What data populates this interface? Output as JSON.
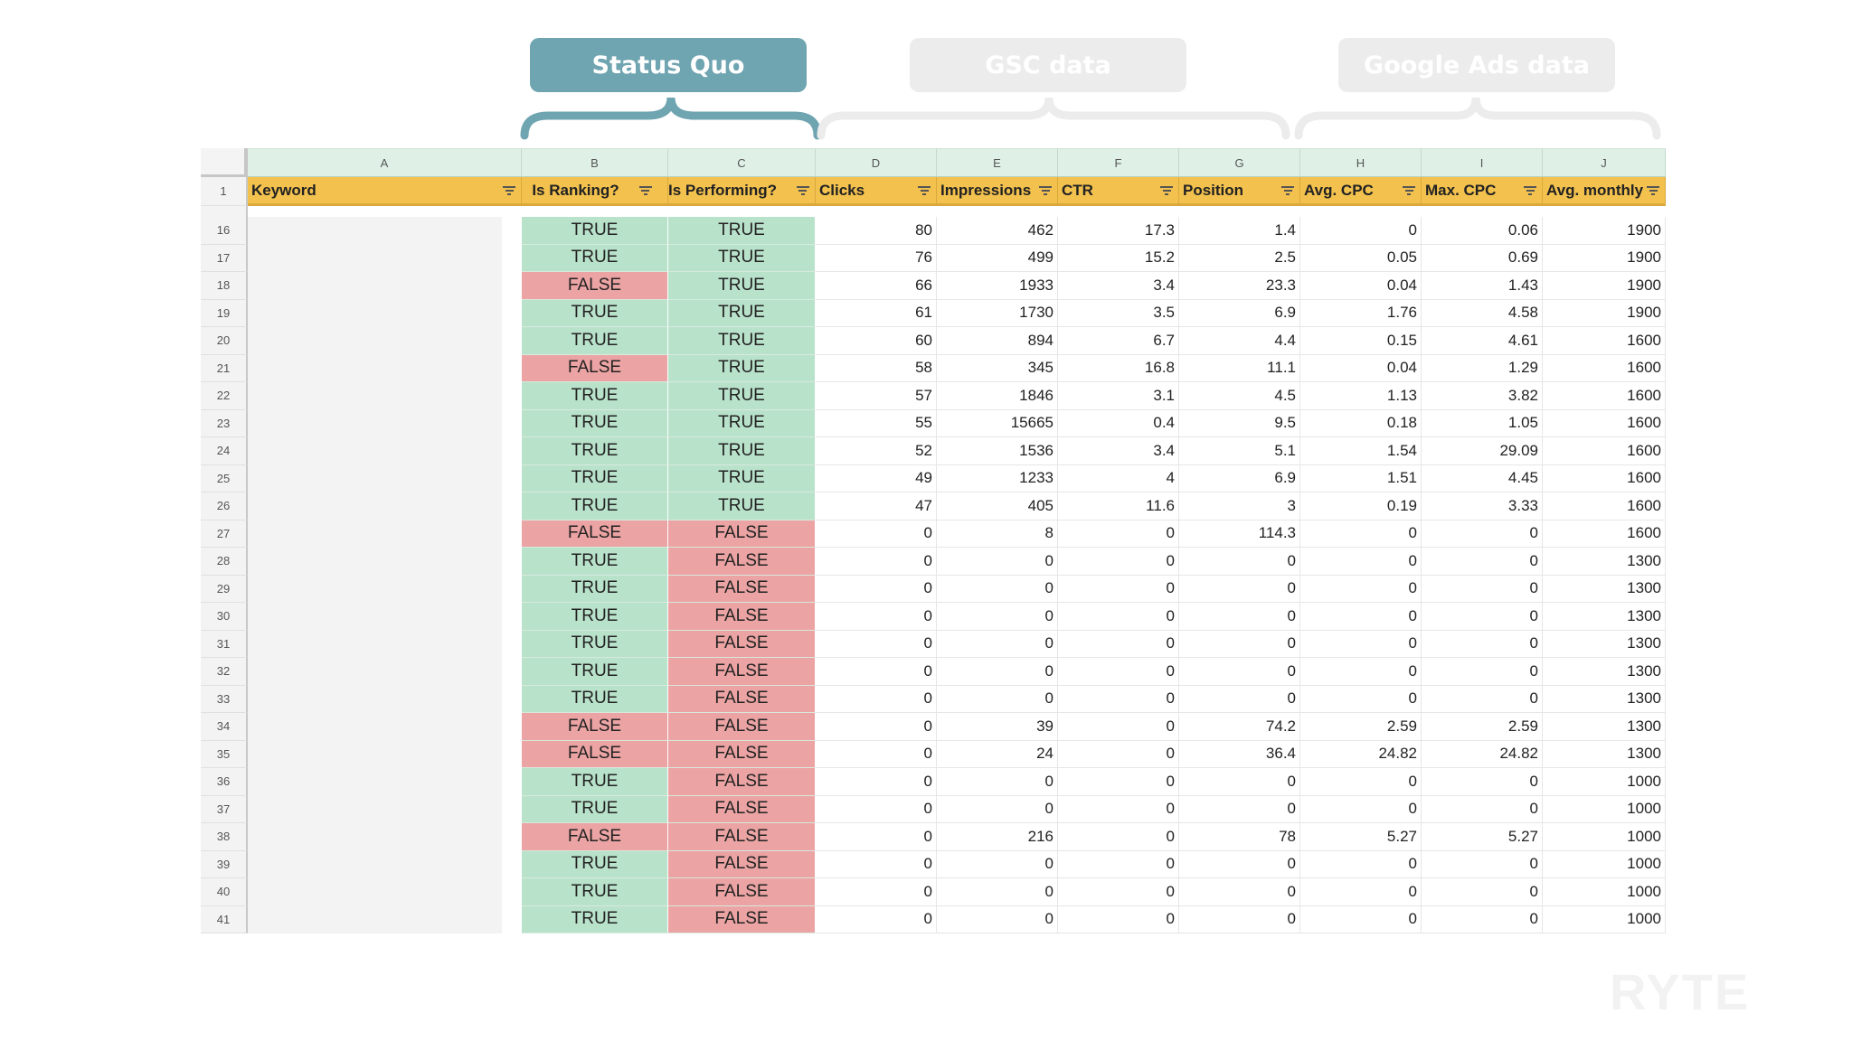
{
  "groups": [
    {
      "label": "Status Quo",
      "active": true
    },
    {
      "label": "GSC data",
      "active": false
    },
    {
      "label": "Google Ads data",
      "active": false
    }
  ],
  "colors": {
    "accent": "#6fa4b1",
    "header": "#f2c14e",
    "true_fill": "#b9e2cb",
    "false_fill": "#eba3a3"
  },
  "column_letters": [
    "A",
    "B",
    "C",
    "D",
    "E",
    "F",
    "G",
    "H",
    "I",
    "J"
  ],
  "header_row_number": "1",
  "headers": [
    "Keyword",
    "Is Ranking?",
    "Is Performing?",
    "Clicks",
    "Impressions",
    "CTR",
    "Position",
    "Avg. CPC",
    "Max. CPC",
    "Avg. monthly"
  ],
  "rows": [
    {
      "n": "16",
      "b": "TRUE",
      "c": "TRUE",
      "v": [
        "80",
        "462",
        "17.3",
        "1.4",
        "0",
        "0.06",
        "1900"
      ]
    },
    {
      "n": "17",
      "b": "TRUE",
      "c": "TRUE",
      "v": [
        "76",
        "499",
        "15.2",
        "2.5",
        "0.05",
        "0.69",
        "1900"
      ]
    },
    {
      "n": "18",
      "b": "FALSE",
      "c": "TRUE",
      "v": [
        "66",
        "1933",
        "3.4",
        "23.3",
        "0.04",
        "1.43",
        "1900"
      ]
    },
    {
      "n": "19",
      "b": "TRUE",
      "c": "TRUE",
      "v": [
        "61",
        "1730",
        "3.5",
        "6.9",
        "1.76",
        "4.58",
        "1900"
      ]
    },
    {
      "n": "20",
      "b": "TRUE",
      "c": "TRUE",
      "v": [
        "60",
        "894",
        "6.7",
        "4.4",
        "0.15",
        "4.61",
        "1600"
      ]
    },
    {
      "n": "21",
      "b": "FALSE",
      "c": "TRUE",
      "v": [
        "58",
        "345",
        "16.8",
        "11.1",
        "0.04",
        "1.29",
        "1600"
      ]
    },
    {
      "n": "22",
      "b": "TRUE",
      "c": "TRUE",
      "v": [
        "57",
        "1846",
        "3.1",
        "4.5",
        "1.13",
        "3.82",
        "1600"
      ]
    },
    {
      "n": "23",
      "b": "TRUE",
      "c": "TRUE",
      "v": [
        "55",
        "15665",
        "0.4",
        "9.5",
        "0.18",
        "1.05",
        "1600"
      ]
    },
    {
      "n": "24",
      "b": "TRUE",
      "c": "TRUE",
      "v": [
        "52",
        "1536",
        "3.4",
        "5.1",
        "1.54",
        "29.09",
        "1600"
      ]
    },
    {
      "n": "25",
      "b": "TRUE",
      "c": "TRUE",
      "v": [
        "49",
        "1233",
        "4",
        "6.9",
        "1.51",
        "4.45",
        "1600"
      ]
    },
    {
      "n": "26",
      "b": "TRUE",
      "c": "TRUE",
      "v": [
        "47",
        "405",
        "11.6",
        "3",
        "0.19",
        "3.33",
        "1600"
      ]
    },
    {
      "n": "27",
      "b": "FALSE",
      "c": "FALSE",
      "v": [
        "0",
        "8",
        "0",
        "114.3",
        "0",
        "0",
        "1600"
      ]
    },
    {
      "n": "28",
      "b": "TRUE",
      "c": "FALSE",
      "v": [
        "0",
        "0",
        "0",
        "0",
        "0",
        "0",
        "1300"
      ]
    },
    {
      "n": "29",
      "b": "TRUE",
      "c": "FALSE",
      "v": [
        "0",
        "0",
        "0",
        "0",
        "0",
        "0",
        "1300"
      ]
    },
    {
      "n": "30",
      "b": "TRUE",
      "c": "FALSE",
      "v": [
        "0",
        "0",
        "0",
        "0",
        "0",
        "0",
        "1300"
      ]
    },
    {
      "n": "31",
      "b": "TRUE",
      "c": "FALSE",
      "v": [
        "0",
        "0",
        "0",
        "0",
        "0",
        "0",
        "1300"
      ]
    },
    {
      "n": "32",
      "b": "TRUE",
      "c": "FALSE",
      "v": [
        "0",
        "0",
        "0",
        "0",
        "0",
        "0",
        "1300"
      ]
    },
    {
      "n": "33",
      "b": "TRUE",
      "c": "FALSE",
      "v": [
        "0",
        "0",
        "0",
        "0",
        "0",
        "0",
        "1300"
      ]
    },
    {
      "n": "34",
      "b": "FALSE",
      "c": "FALSE",
      "v": [
        "0",
        "39",
        "0",
        "74.2",
        "2.59",
        "2.59",
        "1300"
      ]
    },
    {
      "n": "35",
      "b": "FALSE",
      "c": "FALSE",
      "v": [
        "0",
        "24",
        "0",
        "36.4",
        "24.82",
        "24.82",
        "1300"
      ]
    },
    {
      "n": "36",
      "b": "TRUE",
      "c": "FALSE",
      "v": [
        "0",
        "0",
        "0",
        "0",
        "0",
        "0",
        "1000"
      ]
    },
    {
      "n": "37",
      "b": "TRUE",
      "c": "FALSE",
      "v": [
        "0",
        "0",
        "0",
        "0",
        "0",
        "0",
        "1000"
      ]
    },
    {
      "n": "38",
      "b": "FALSE",
      "c": "FALSE",
      "v": [
        "0",
        "216",
        "0",
        "78",
        "5.27",
        "5.27",
        "1000"
      ]
    },
    {
      "n": "39",
      "b": "TRUE",
      "c": "FALSE",
      "v": [
        "0",
        "0",
        "0",
        "0",
        "0",
        "0",
        "1000"
      ]
    },
    {
      "n": "40",
      "b": "TRUE",
      "c": "FALSE",
      "v": [
        "0",
        "0",
        "0",
        "0",
        "0",
        "0",
        "1000"
      ]
    },
    {
      "n": "41",
      "b": "TRUE",
      "c": "FALSE",
      "v": [
        "0",
        "0",
        "0",
        "0",
        "0",
        "0",
        "1000"
      ]
    }
  ],
  "watermark": "RYTE"
}
